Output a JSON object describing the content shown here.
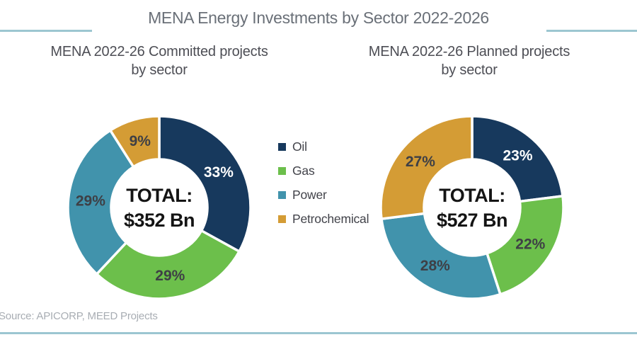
{
  "page": {
    "title": "MENA Energy Investments by Sector 2022-2026",
    "source": "Source: APICORP, MEED Projects"
  },
  "colors": {
    "oil": "#17395d",
    "gas": "#6cbf4b",
    "power": "#4193ac",
    "petrochemical": "#d49c35",
    "accent_line": "#9cc6d1",
    "label_dark": "#3e3f45",
    "label_light": "#ffffff"
  },
  "legend": {
    "items": [
      {
        "label": "Oil",
        "color": "#17395d"
      },
      {
        "label": "Gas",
        "color": "#6cbf4b"
      },
      {
        "label": "Power",
        "color": "#4193ac"
      },
      {
        "label": "Petrochemical",
        "color": "#d49c35"
      }
    ]
  },
  "chart_data": [
    {
      "type": "pie",
      "subtype": "donut",
      "title": "MENA 2022-26 Committed projects by sector",
      "title_line1": "MENA 2022-26 Committed projects",
      "title_line2": "by sector",
      "center_label": "TOTAL:",
      "center_value": "$352 Bn",
      "categories": [
        "Oil",
        "Gas",
        "Power",
        "Petrochemical"
      ],
      "values": [
        33,
        29,
        29,
        9
      ],
      "labels": [
        "33%",
        "29%",
        "29%",
        "9%"
      ],
      "slice_colors": [
        "#17395d",
        "#6cbf4b",
        "#4193ac",
        "#d49c35"
      ],
      "label_colors": [
        "#ffffff",
        "#3e3f45",
        "#3e3f45",
        "#3e3f45"
      ],
      "start_angle_deg": 0,
      "direction": "clockwise",
      "units": "percent"
    },
    {
      "type": "pie",
      "subtype": "donut",
      "title": "MENA 2022-26 Planned projects by sector",
      "title_line1": "MENA 2022-26 Planned projects",
      "title_line2": "by sector",
      "center_label": "TOTAL:",
      "center_value": "$527 Bn",
      "categories": [
        "Oil",
        "Gas",
        "Power",
        "Petrochemical"
      ],
      "values": [
        23,
        22,
        28,
        27
      ],
      "labels": [
        "23%",
        "22%",
        "28%",
        "27%"
      ],
      "slice_colors": [
        "#17395d",
        "#6cbf4b",
        "#4193ac",
        "#d49c35"
      ],
      "label_colors": [
        "#ffffff",
        "#3e3f45",
        "#3e3f45",
        "#3e3f45"
      ],
      "start_angle_deg": 0,
      "direction": "clockwise",
      "units": "percent"
    }
  ]
}
